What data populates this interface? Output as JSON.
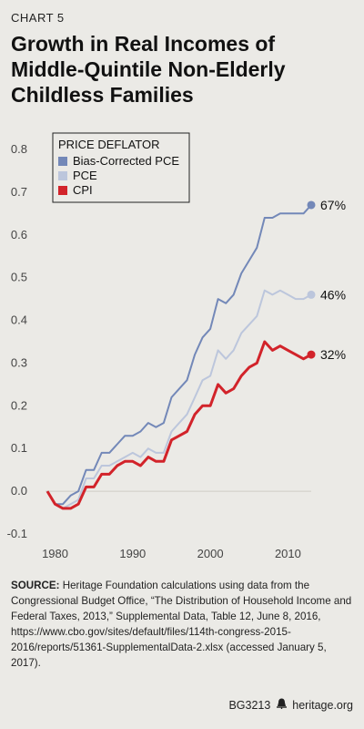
{
  "header": {
    "kicker": "CHART 5",
    "title": "Growth in Real Incomes of Middle-Quintile Non-Elderly Childless Families"
  },
  "source": {
    "label": "SOURCE:",
    "text": "Heritage Foundation calculations using data from the Congressional Budget Office, “The Distribution of Household Income and Federal Taxes, 2013,” Supplemental Data, Table 12, June 8, 2016, https://www.cbo.gov/sites/default/files/114th-congress-2015-2016/reports/51361-SupplementalData-2.xlsx (accessed January 5, 2017)."
  },
  "footer": {
    "code": "BG3213",
    "logo_icon": "heritage-bell-icon",
    "site": "heritage.org"
  },
  "chart_data": {
    "type": "line",
    "xlim": [
      1979,
      2013
    ],
    "ylim": [
      -0.1,
      0.8
    ],
    "x_ticks": [
      1980,
      1990,
      2000,
      2010
    ],
    "y_ticks": [
      "-0.1",
      "0.0",
      "0.1",
      "0.2",
      "0.3",
      "0.4",
      "0.5",
      "0.6",
      "0.7",
      "0.8"
    ],
    "grid": false,
    "legend": {
      "title": "PRICE DEFLATOR",
      "placement": "top-left"
    },
    "x": [
      1979,
      1980,
      1981,
      1982,
      1983,
      1984,
      1985,
      1986,
      1987,
      1988,
      1989,
      1990,
      1991,
      1992,
      1993,
      1994,
      1995,
      1996,
      1997,
      1998,
      1999,
      2000,
      2001,
      2002,
      2003,
      2004,
      2005,
      2006,
      2007,
      2008,
      2009,
      2010,
      2011,
      2012,
      2013
    ],
    "series": [
      {
        "name": "Bias-Corrected PCE",
        "color": "#7388b8",
        "width": 2,
        "end_label": "67%",
        "values": [
          0.0,
          -0.03,
          -0.03,
          -0.01,
          0.0,
          0.05,
          0.05,
          0.09,
          0.09,
          0.11,
          0.13,
          0.13,
          0.14,
          0.16,
          0.15,
          0.16,
          0.22,
          0.24,
          0.26,
          0.32,
          0.36,
          0.38,
          0.45,
          0.44,
          0.46,
          0.51,
          0.54,
          0.57,
          0.64,
          0.64,
          0.65,
          0.65,
          0.65,
          0.65,
          0.67
        ]
      },
      {
        "name": "PCE",
        "color": "#bcc6dc",
        "width": 2,
        "end_label": "46%",
        "values": [
          0.0,
          -0.03,
          -0.04,
          -0.03,
          -0.02,
          0.03,
          0.03,
          0.06,
          0.06,
          0.07,
          0.08,
          0.09,
          0.08,
          0.1,
          0.09,
          0.09,
          0.14,
          0.16,
          0.18,
          0.22,
          0.26,
          0.27,
          0.33,
          0.31,
          0.33,
          0.37,
          0.39,
          0.41,
          0.47,
          0.46,
          0.47,
          0.46,
          0.45,
          0.45,
          0.46
        ]
      },
      {
        "name": "CPI",
        "color": "#d2232a",
        "width": 3,
        "end_label": "32%",
        "values": [
          0.0,
          -0.03,
          -0.04,
          -0.04,
          -0.03,
          0.01,
          0.01,
          0.04,
          0.04,
          0.06,
          0.07,
          0.07,
          0.06,
          0.08,
          0.07,
          0.07,
          0.12,
          0.13,
          0.14,
          0.18,
          0.2,
          0.2,
          0.25,
          0.23,
          0.24,
          0.27,
          0.29,
          0.3,
          0.35,
          0.33,
          0.34,
          0.33,
          0.32,
          0.31,
          0.32
        ]
      }
    ]
  }
}
